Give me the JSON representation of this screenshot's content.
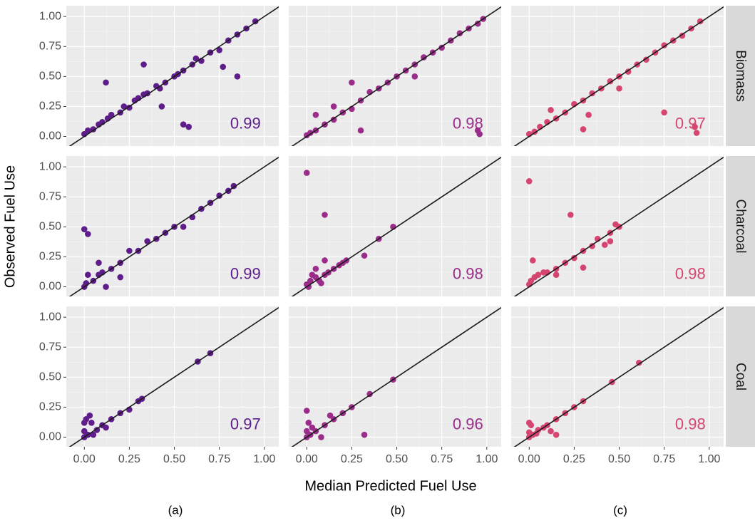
{
  "chart_data": {
    "type": "scatter",
    "xlabel": "Median Predicted Fuel Use",
    "ylabel": "Observed Fuel Use",
    "col_labels": [
      "(a)",
      "(b)",
      "(c)"
    ],
    "row_labels": [
      "Biomass",
      "Charcoal",
      "Coal"
    ],
    "xlim": [
      -0.1,
      1.08
    ],
    "ylim": [
      -0.08,
      1.09
    ],
    "xticks": [
      {
        "value": 0,
        "label": "0.00"
      },
      {
        "value": 0.25,
        "label": "0.25"
      },
      {
        "value": 0.5,
        "label": "0.50"
      },
      {
        "value": 0.75,
        "label": "0.75"
      },
      {
        "value": 1,
        "label": "1.00"
      }
    ],
    "yticks": [
      {
        "value": 0,
        "label": "0.00"
      },
      {
        "value": 0.25,
        "label": "0.25"
      },
      {
        "value": 0.5,
        "label": "0.50"
      },
      {
        "value": 0.75,
        "label": "0.75"
      },
      {
        "value": 1,
        "label": "1.00"
      }
    ],
    "grid": true,
    "rows": [
      {
        "panels": [
          {
            "color": "#5e1d8a",
            "annotation": 0.99,
            "x": [
              0,
              0.02,
              0.05,
              0.08,
              0.1,
              0.13,
              0.15,
              0.2,
              0.22,
              0.25,
              0.28,
              0.3,
              0.33,
              0.35,
              0.4,
              0.42,
              0.45,
              0.5,
              0.52,
              0.55,
              0.6,
              0.62,
              0.65,
              0.7,
              0.75,
              0.8,
              0.85,
              0.9,
              0.95,
              0.12,
              0.55,
              0.58,
              0.85,
              0.77,
              0.43,
              0.33
            ],
            "y": [
              0.02,
              0.05,
              0.06,
              0.1,
              0.12,
              0.15,
              0.18,
              0.2,
              0.25,
              0.24,
              0.3,
              0.32,
              0.35,
              0.36,
              0.42,
              0.4,
              0.45,
              0.5,
              0.52,
              0.55,
              0.6,
              0.65,
              0.63,
              0.7,
              0.72,
              0.8,
              0.85,
              0.9,
              0.96,
              0.45,
              0.1,
              0.08,
              0.5,
              0.58,
              0.25,
              0.6
            ]
          },
          {
            "color": "#9b2d8a",
            "annotation": 0.98,
            "x": [
              0,
              0.02,
              0.05,
              0.1,
              0.15,
              0.2,
              0.25,
              0.3,
              0.35,
              0.4,
              0.45,
              0.5,
              0.55,
              0.6,
              0.65,
              0.7,
              0.75,
              0.8,
              0.85,
              0.9,
              0.95,
              0.98,
              0.05,
              0.15,
              0.25,
              0.3,
              0.95,
              0.96,
              0.6
            ],
            "y": [
              0.01,
              0.03,
              0.05,
              0.1,
              0.14,
              0.2,
              0.23,
              0.3,
              0.37,
              0.4,
              0.45,
              0.5,
              0.55,
              0.6,
              0.66,
              0.7,
              0.74,
              0.8,
              0.86,
              0.9,
              0.94,
              0.98,
              0.18,
              0.25,
              0.45,
              0.05,
              0.05,
              0.02,
              0.5
            ]
          },
          {
            "color": "#d6456f",
            "annotation": 0.97,
            "x": [
              0,
              0.03,
              0.06,
              0.1,
              0.15,
              0.2,
              0.25,
              0.3,
              0.35,
              0.4,
              0.45,
              0.5,
              0.55,
              0.6,
              0.65,
              0.7,
              0.75,
              0.8,
              0.85,
              0.9,
              0.95,
              0.3,
              0.33,
              0.75,
              0.92,
              0.93,
              0.12,
              0.5
            ],
            "y": [
              0.02,
              0.04,
              0.08,
              0.12,
              0.15,
              0.2,
              0.27,
              0.3,
              0.36,
              0.4,
              0.46,
              0.5,
              0.54,
              0.6,
              0.64,
              0.7,
              0.76,
              0.8,
              0.84,
              0.9,
              0.96,
              0.06,
              0.18,
              0.2,
              0.08,
              0.03,
              0.22,
              0.4
            ]
          }
        ]
      },
      {
        "panels": [
          {
            "color": "#5e1d8a",
            "annotation": 0.99,
            "x": [
              0,
              0.01,
              0.02,
              0.05,
              0.08,
              0.1,
              0.15,
              0.2,
              0.25,
              0.3,
              0.35,
              0.4,
              0.45,
              0.5,
              0.55,
              0.6,
              0.65,
              0.7,
              0.75,
              0.8,
              0.83,
              0,
              0.02,
              0.12,
              0.2,
              0.08
            ],
            "y": [
              0,
              0.03,
              0.1,
              0.05,
              0.1,
              0.12,
              0.15,
              0.2,
              0.3,
              0.3,
              0.38,
              0.4,
              0.45,
              0.5,
              0.5,
              0.58,
              0.65,
              0.7,
              0.76,
              0.8,
              0.84,
              0.48,
              0.44,
              0,
              0.08,
              0.2
            ]
          },
          {
            "color": "#9b2d8a",
            "annotation": 0.98,
            "x": [
              0,
              0.01,
              0.02,
              0.03,
              0.05,
              0.07,
              0.1,
              0.12,
              0.15,
              0.18,
              0.2,
              0.05,
              0.1,
              0.22,
              0.32,
              0.4,
              0.48,
              0,
              0.1,
              0.08
            ],
            "y": [
              0.02,
              0,
              0.05,
              0.1,
              0.08,
              0.05,
              0.1,
              0.12,
              0.15,
              0.18,
              0.2,
              0.15,
              0.22,
              0.22,
              0.26,
              0.4,
              0.5,
              0.95,
              0.6,
              0.03
            ]
          },
          {
            "color": "#d6456f",
            "annotation": 0.98,
            "x": [
              0,
              0.01,
              0.03,
              0.05,
              0.08,
              0.1,
              0.15,
              0.2,
              0.25,
              0.3,
              0.35,
              0.38,
              0.42,
              0.45,
              0.48,
              0.5,
              0,
              0.23,
              0.3,
              0.15,
              0.45,
              0.02
            ],
            "y": [
              0.02,
              0.05,
              0.08,
              0.1,
              0.12,
              0.12,
              0.15,
              0.2,
              0.24,
              0.3,
              0.34,
              0.4,
              0.35,
              0.45,
              0.52,
              0.5,
              0.88,
              0.6,
              0.16,
              0.1,
              0.38,
              0.22
            ]
          }
        ]
      },
      {
        "panels": [
          {
            "color": "#5e1d8a",
            "annotation": 0.97,
            "x": [
              0,
              0,
              0.01,
              0.02,
              0.03,
              0.05,
              0.07,
              0.1,
              0.15,
              0.2,
              0.25,
              0.3,
              0.32,
              0.63,
              0.7,
              0,
              0.04,
              0.12
            ],
            "y": [
              0,
              0.05,
              0.15,
              0.02,
              0.18,
              0.02,
              0.06,
              0.1,
              0.15,
              0.2,
              0.23,
              0.3,
              0.32,
              0.63,
              0.7,
              0.12,
              0.12,
              0.08
            ]
          },
          {
            "color": "#9b2d8a",
            "annotation": 0.96,
            "x": [
              0,
              0,
              0.01,
              0.02,
              0.03,
              0.05,
              0.1,
              0.15,
              0.2,
              0.25,
              0.35,
              0.48,
              0.32,
              0,
              0.13,
              0.08
            ],
            "y": [
              0,
              0.05,
              0.12,
              0.02,
              0.08,
              0.05,
              0.1,
              0.15,
              0.2,
              0.25,
              0.36,
              0.48,
              0.02,
              0.22,
              0.18,
              0
            ]
          },
          {
            "color": "#d6456f",
            "annotation": 0.98,
            "x": [
              0,
              0,
              0.01,
              0.02,
              0.04,
              0.05,
              0.08,
              0.1,
              0.15,
              0.2,
              0.25,
              0.3,
              0.46,
              0.61,
              0,
              0.15,
              0.12
            ],
            "y": [
              0,
              0.04,
              0.1,
              0.02,
              0.03,
              0.06,
              0.08,
              0.1,
              0.15,
              0.2,
              0.25,
              0.3,
              0.46,
              0.62,
              0.12,
              0.02,
              0.05
            ]
          }
        ]
      }
    ]
  }
}
